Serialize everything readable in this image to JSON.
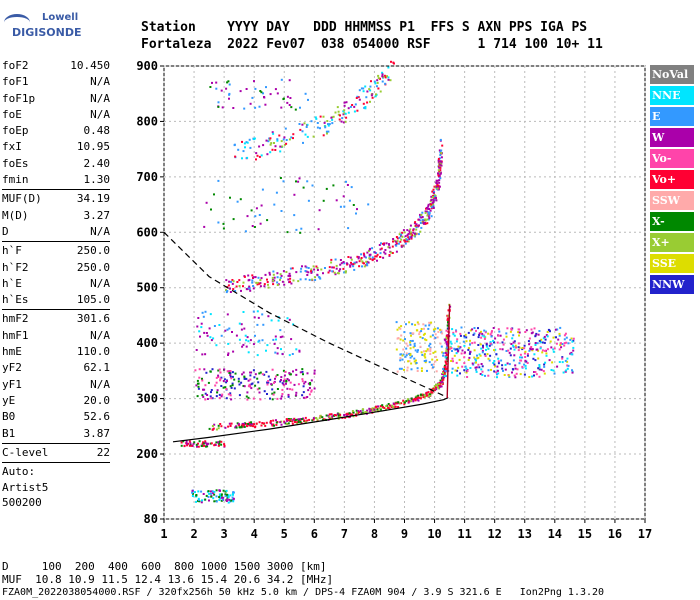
{
  "logo": {
    "line1": "Lowell",
    "line2": "DIGISONDE"
  },
  "header": {
    "line1": "Station    YYYY DAY   DDD HHMMSS P1  FFS S AXN PPS IGA PS",
    "line2": "Fortaleza  2022 Fev07  038 054000 RSF      1 714 100 10+ 11"
  },
  "params": {
    "group1": [
      {
        "name": "foF2",
        "value": "10.450"
      },
      {
        "name": "foF1",
        "value": "N/A"
      },
      {
        "name": "foF1p",
        "value": "N/A"
      },
      {
        "name": "foE",
        "value": "N/A"
      },
      {
        "name": "foEp",
        "value": "0.48"
      },
      {
        "name": "fxI",
        "value": "10.95"
      },
      {
        "name": "foEs",
        "value": "2.40"
      },
      {
        "name": "fmin",
        "value": "1.30"
      }
    ],
    "group2": [
      {
        "name": "MUF(D)",
        "value": "34.19"
      },
      {
        "name": "M(D)",
        "value": "3.27"
      },
      {
        "name": "D",
        "value": "N/A"
      }
    ],
    "group3": [
      {
        "name": "h`F",
        "value": "250.0"
      },
      {
        "name": "h`F2",
        "value": "250.0"
      },
      {
        "name": "h`E",
        "value": "N/A"
      },
      {
        "name": "h`Es",
        "value": "105.0"
      }
    ],
    "group4": [
      {
        "name": "hmF2",
        "value": "301.6"
      },
      {
        "name": "hmF1",
        "value": "N/A"
      },
      {
        "name": "hmE",
        "value": "110.0"
      },
      {
        "name": "yF2",
        "value": "62.1"
      },
      {
        "name": "yF1",
        "value": "N/A"
      },
      {
        "name": "yE",
        "value": "20.0"
      },
      {
        "name": "B0",
        "value": "52.6"
      },
      {
        "name": "B1",
        "value": "3.87"
      }
    ],
    "group5": [
      {
        "name": "C-level",
        "value": "22"
      }
    ],
    "auto": [
      "Auto:",
      "Artist5",
      "500200"
    ]
  },
  "legend": [
    {
      "label": "NoVal",
      "color": "#808080"
    },
    {
      "label": "NNE",
      "color": "#00e5ff"
    },
    {
      "label": "E",
      "color": "#3399ff"
    },
    {
      "label": "W",
      "color": "#aa00aa"
    },
    {
      "label": "Vo-",
      "color": "#ff44aa"
    },
    {
      "label": "Vo+",
      "color": "#ff0033"
    },
    {
      "label": "SSW",
      "color": "#ffaaaa"
    },
    {
      "label": "X-",
      "color": "#008800"
    },
    {
      "label": "X+",
      "color": "#99cc33"
    },
    {
      "label": "SSE",
      "color": "#dddd00"
    },
    {
      "label": "NNW",
      "color": "#2222cc"
    }
  ],
  "bottom": {
    "line1": "D     100  200  400  600  800 1000 1500 3000 [km]",
    "line2": "MUF  10.8 10.9 11.5 12.4 13.6 15.4 20.6 34.2 [MHz]",
    "line3": "FZA0M_2022038054000.RSF / 320fx256h 50 kHz 5.0 km / DPS-4 FZA0M 904 / 3.9 S 321.6 E   Ion2Png 1.3.20"
  },
  "chart_data": {
    "type": "scatter",
    "x_ticks": [
      "1",
      "2",
      "3",
      "4",
      "5",
      "6",
      "7",
      "8",
      "9",
      "10",
      "11",
      "12",
      "13",
      "14",
      "15",
      "16",
      "17"
    ],
    "y_ticks": [
      "80",
      "200",
      "300",
      "400",
      "500",
      "600",
      "700",
      "800",
      "900"
    ],
    "xlim": [
      1,
      17
    ],
    "ylim": [
      80,
      900
    ],
    "grid": true,
    "traces": [
      {
        "name": "o-trace F2 (Vo+)",
        "points": [
          [
            2.5,
            250
          ],
          [
            4,
            255
          ],
          [
            5.5,
            262
          ],
          [
            7,
            272
          ],
          [
            8,
            282
          ],
          [
            9,
            295
          ],
          [
            9.8,
            310
          ],
          [
            10.2,
            330
          ],
          [
            10.35,
            360
          ],
          [
            10.45,
            470
          ]
        ]
      },
      {
        "name": "o-trace F2 2nd hop",
        "points": [
          [
            3,
            505
          ],
          [
            4.5,
            515
          ],
          [
            6,
            530
          ],
          [
            7.5,
            550
          ],
          [
            8.5,
            575
          ],
          [
            9.3,
            605
          ],
          [
            9.8,
            640
          ],
          [
            10.1,
            690
          ],
          [
            10.2,
            760
          ]
        ]
      },
      {
        "name": "o-trace F2 3rd hop",
        "points": [
          [
            3.3,
            740
          ],
          [
            4.5,
            760
          ],
          [
            5.5,
            780
          ],
          [
            6.5,
            800
          ],
          [
            7.3,
            830
          ],
          [
            8,
            860
          ],
          [
            8.6,
            900
          ]
        ]
      },
      {
        "name": "profile",
        "points": [
          [
            1.3,
            222
          ],
          [
            2.5,
            230
          ],
          [
            4.5,
            245
          ],
          [
            6.5,
            262
          ],
          [
            8.5,
            280
          ],
          [
            9.6,
            290
          ],
          [
            10.3,
            298
          ],
          [
            10.45,
            301.6
          ]
        ]
      },
      {
        "name": "profile upper",
        "points": [
          [
            1,
            600
          ],
          [
            2.5,
            520
          ],
          [
            4.5,
            455
          ],
          [
            6.5,
            400
          ],
          [
            8.5,
            350
          ],
          [
            9.8,
            318
          ],
          [
            10.45,
            301.6
          ]
        ]
      }
    ]
  }
}
